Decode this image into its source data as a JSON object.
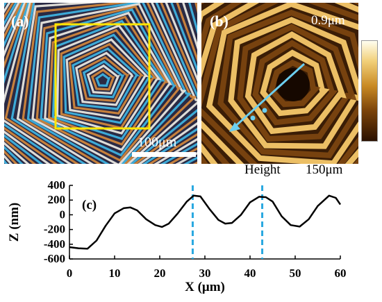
{
  "panels": {
    "a": {
      "label": "(a)",
      "scale_bar": "100μm",
      "colors": {
        "ring_blue": "#3fb8e8",
        "ring_orange": "#d78a3c",
        "ring_white": "#f2efe8",
        "dark": "#2a2a44",
        "box": "#ffe600"
      }
    },
    "b": {
      "label": "(b)",
      "z_max": "0.9μm",
      "profile_label": "Height",
      "size_label": "150μm",
      "colors": {
        "ridge": "#f5c86a",
        "bright": "#fff3c0",
        "trough": "#3a1d06",
        "arrow": "#6ccff0"
      }
    }
  },
  "chart_data": {
    "type": "line",
    "label": "(c)",
    "xlabel": "X (μm)",
    "ylabel": "Z (nm)",
    "xlim": [
      0,
      60
    ],
    "ylim": [
      -600,
      400
    ],
    "xticks": [
      0,
      10,
      20,
      30,
      40,
      50,
      60
    ],
    "yticks": [
      -600,
      -400,
      -200,
      0,
      200,
      400
    ],
    "xtick_labels": [
      "0",
      "10",
      "20",
      "30",
      "40",
      "50",
      "60"
    ],
    "ytick_labels": [
      "-600",
      "-400",
      "-200",
      "0",
      "200",
      "400"
    ],
    "x": [
      0,
      2,
      4,
      6,
      8,
      10,
      12,
      13.5,
      15,
      17,
      19,
      20.5,
      22,
      24,
      26,
      27.5,
      29,
      31,
      33,
      34.5,
      36,
      38,
      40,
      42,
      43.5,
      45,
      47,
      49,
      51,
      53,
      55,
      57.5,
      59,
      60
    ],
    "y": [
      -440,
      -455,
      -460,
      -350,
      -150,
      20,
      90,
      100,
      60,
      -60,
      -140,
      -165,
      -120,
      20,
      180,
      260,
      250,
      80,
      -70,
      -120,
      -110,
      0,
      170,
      245,
      240,
      180,
      -20,
      -140,
      -160,
      -60,
      120,
      260,
      230,
      140
    ],
    "vlines": [
      27.3,
      42.7
    ],
    "colors": {
      "line": "#000000",
      "vline": "#29a8e0"
    }
  }
}
